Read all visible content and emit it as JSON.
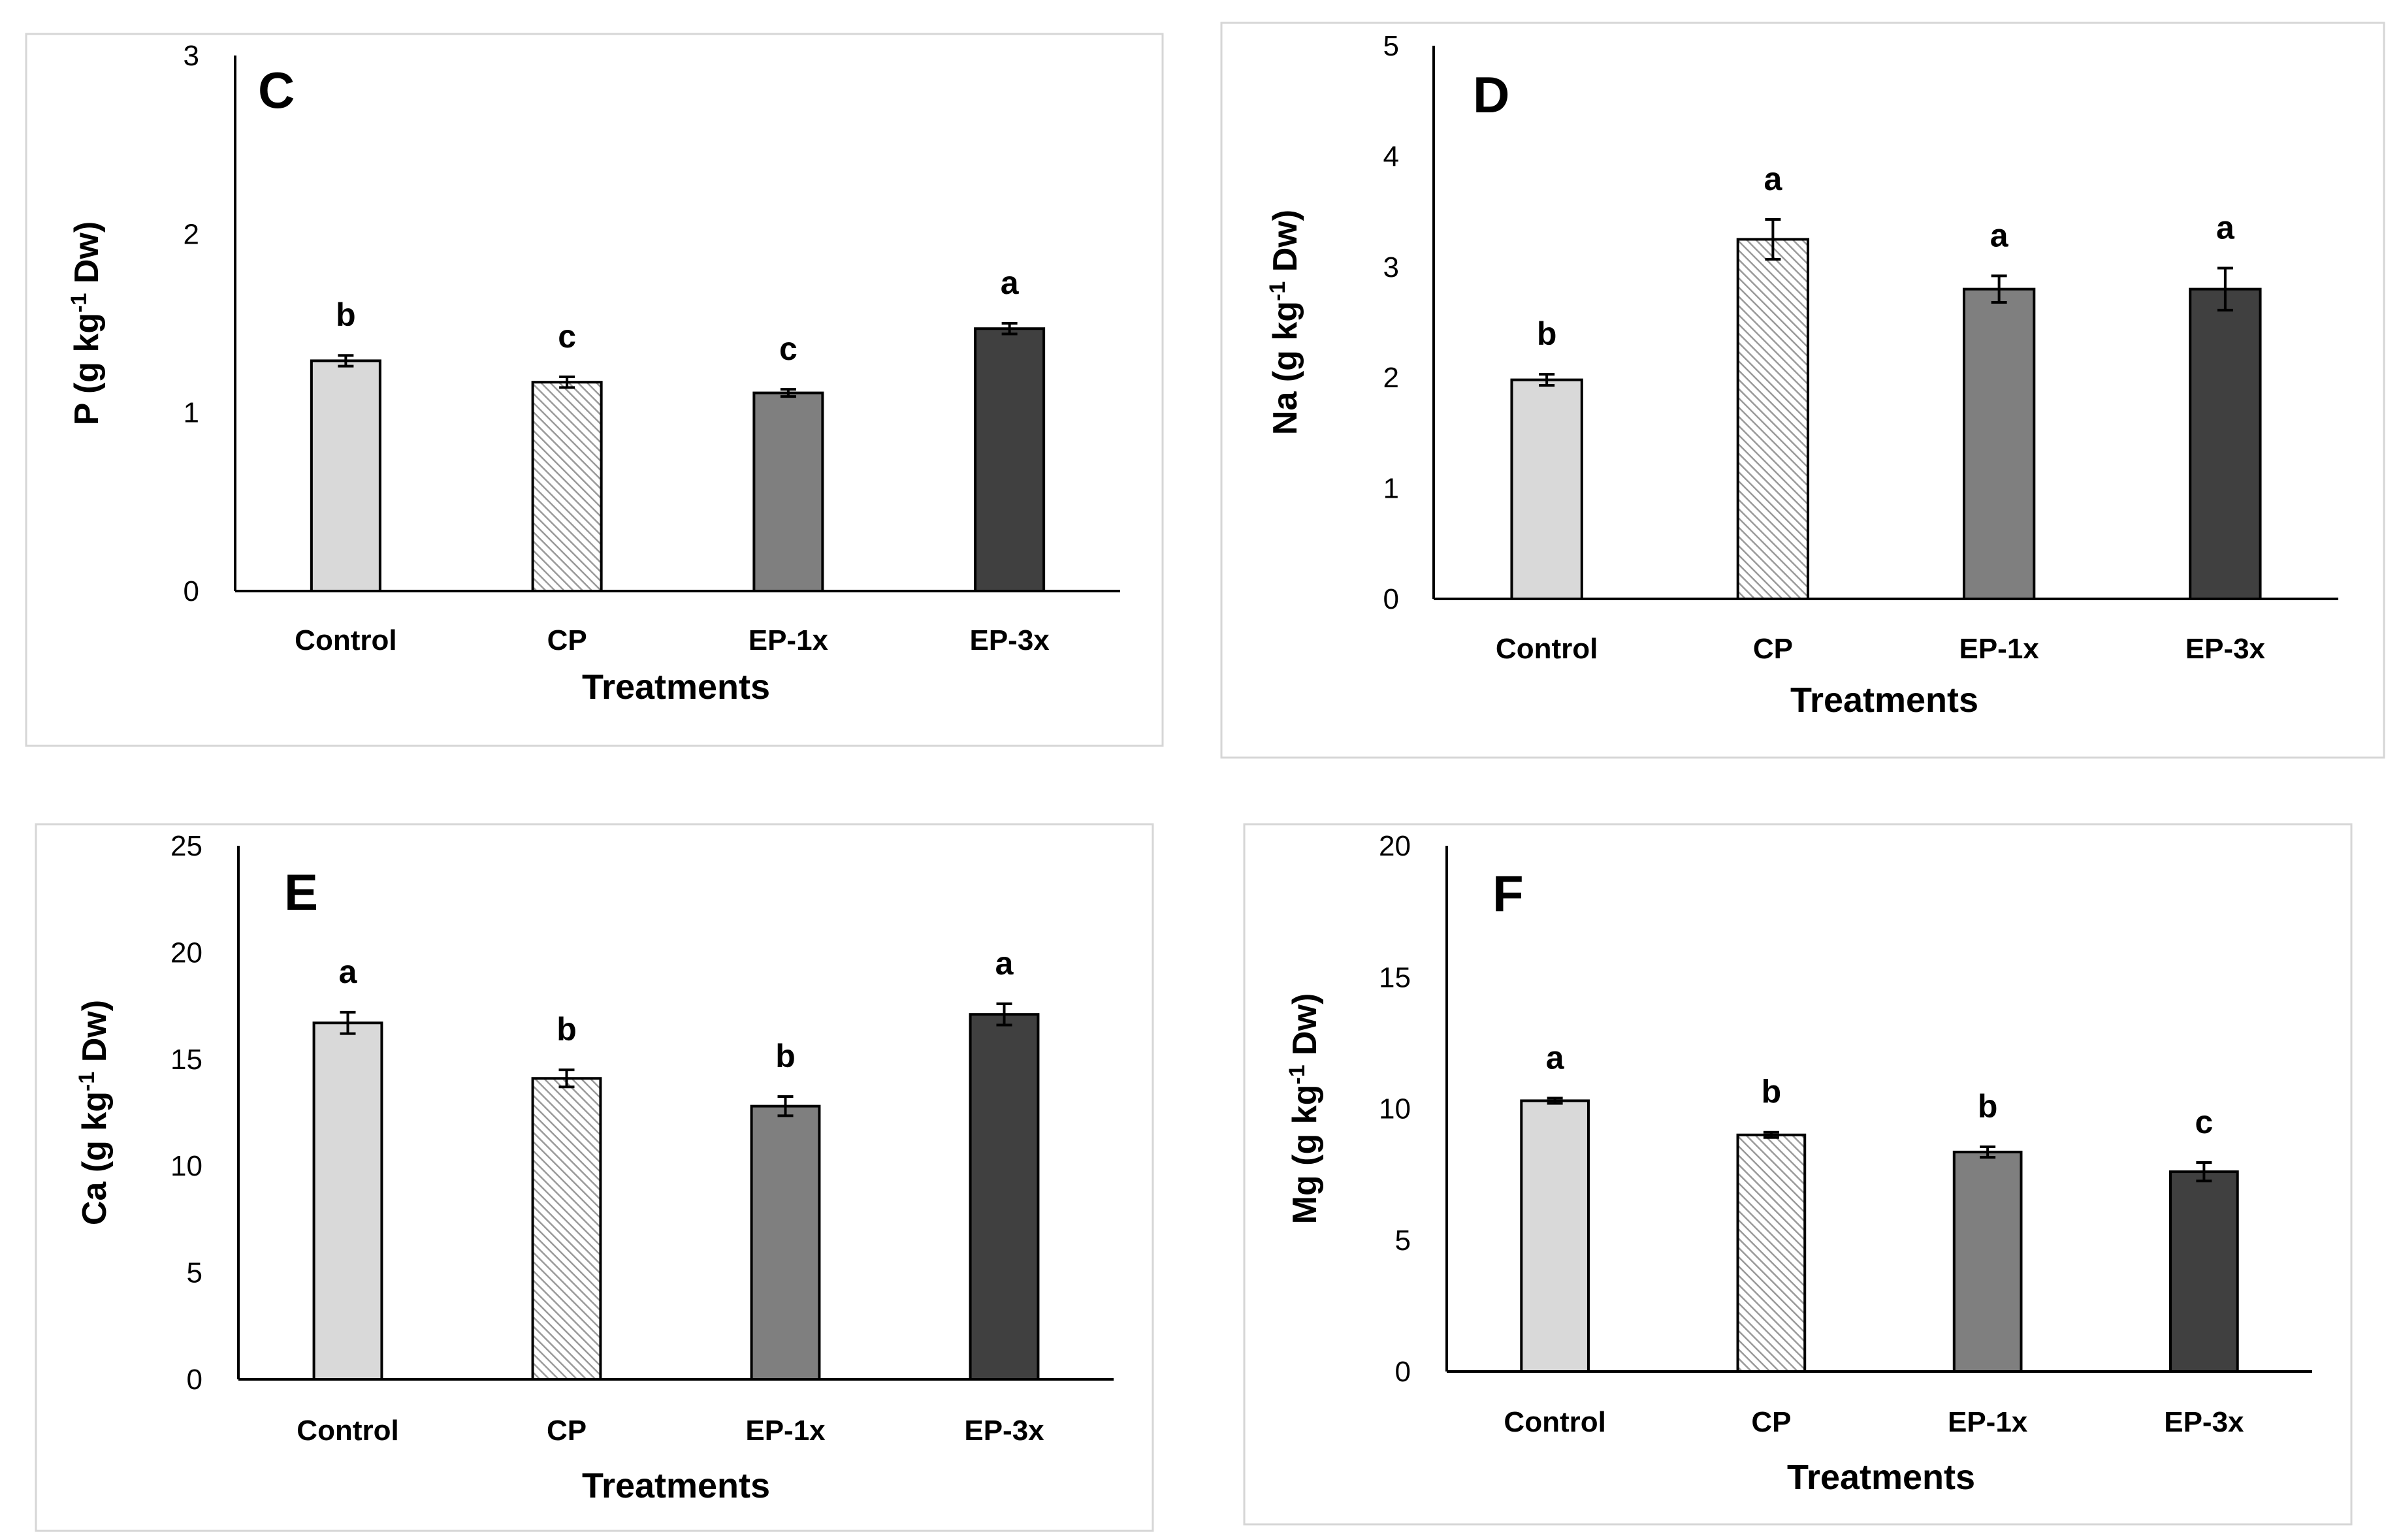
{
  "chart_data": [
    {
      "type": "bar",
      "panel": "C",
      "xlabel": "Treatments",
      "ylabel": "P (g kg-1 Dw)",
      "ylabel_parts": {
        "pre": "P (g kg",
        "sup": "-1",
        "post": " Dw)"
      },
      "categories": [
        "Control",
        "CP",
        "EP-1x",
        "EP-3x"
      ],
      "values": [
        1.29,
        1.17,
        1.11,
        1.47
      ],
      "errors": [
        0.03,
        0.03,
        0.02,
        0.03
      ],
      "significance": [
        "b",
        "c",
        "c",
        "a"
      ],
      "ylim": [
        0,
        3
      ],
      "yticks": [
        0,
        1,
        2,
        3
      ],
      "grid": false
    },
    {
      "type": "bar",
      "panel": "D",
      "xlabel": "Treatments",
      "ylabel": "Na (g kg-1 Dw)",
      "ylabel_parts": {
        "pre": "Na (g kg",
        "sup": "-1",
        "post": " Dw)"
      },
      "categories": [
        "Control",
        "CP",
        "EP-1x",
        "EP-3x"
      ],
      "values": [
        1.98,
        3.25,
        2.8,
        2.8
      ],
      "errors": [
        0.05,
        0.18,
        0.12,
        0.19
      ],
      "significance": [
        "b",
        "a",
        "a",
        "a"
      ],
      "ylim": [
        0,
        5
      ],
      "yticks": [
        0,
        1,
        2,
        3,
        4,
        5
      ],
      "grid": false
    },
    {
      "type": "bar",
      "panel": "E",
      "xlabel": "Treatments",
      "ylabel": "Ca (g kg-1 Dw)",
      "ylabel_parts": {
        "pre": "Ca (g kg",
        "sup": "-1",
        "post": " Dw)"
      },
      "categories": [
        "Control",
        "CP",
        "EP-1x",
        "EP-3x"
      ],
      "values": [
        16.7,
        14.1,
        12.8,
        17.1
      ],
      "errors": [
        0.5,
        0.4,
        0.45,
        0.5
      ],
      "significance": [
        "a",
        "b",
        "b",
        "a"
      ],
      "ylim": [
        0,
        25
      ],
      "yticks": [
        0,
        5,
        10,
        15,
        20,
        25
      ],
      "grid": false
    },
    {
      "type": "bar",
      "panel": "F",
      "xlabel": "Treatments",
      "ylabel": "Mg (g kg-1 Dw)",
      "ylabel_parts": {
        "pre": "Mg (g kg",
        "sup": "-1",
        "post": " Dw)"
      },
      "categories": [
        "Control",
        "CP",
        "EP-1x",
        "EP-3x"
      ],
      "values": [
        10.3,
        9.0,
        8.35,
        7.6
      ],
      "errors": [
        0.1,
        0.1,
        0.2,
        0.35
      ],
      "significance": [
        "a",
        "b",
        "b",
        "c"
      ],
      "ylim": [
        0,
        20
      ],
      "yticks": [
        0,
        5,
        10,
        15,
        20
      ],
      "grid": false
    }
  ],
  "colors": {
    "bar_fills": [
      "#d9d9d9",
      "pattern",
      "#7f7f7f",
      "#404040"
    ],
    "pattern_base": "#ffffff",
    "pattern_stroke": "#9a9a9a",
    "axis": "#000000",
    "frame": "#d6d6d6"
  }
}
